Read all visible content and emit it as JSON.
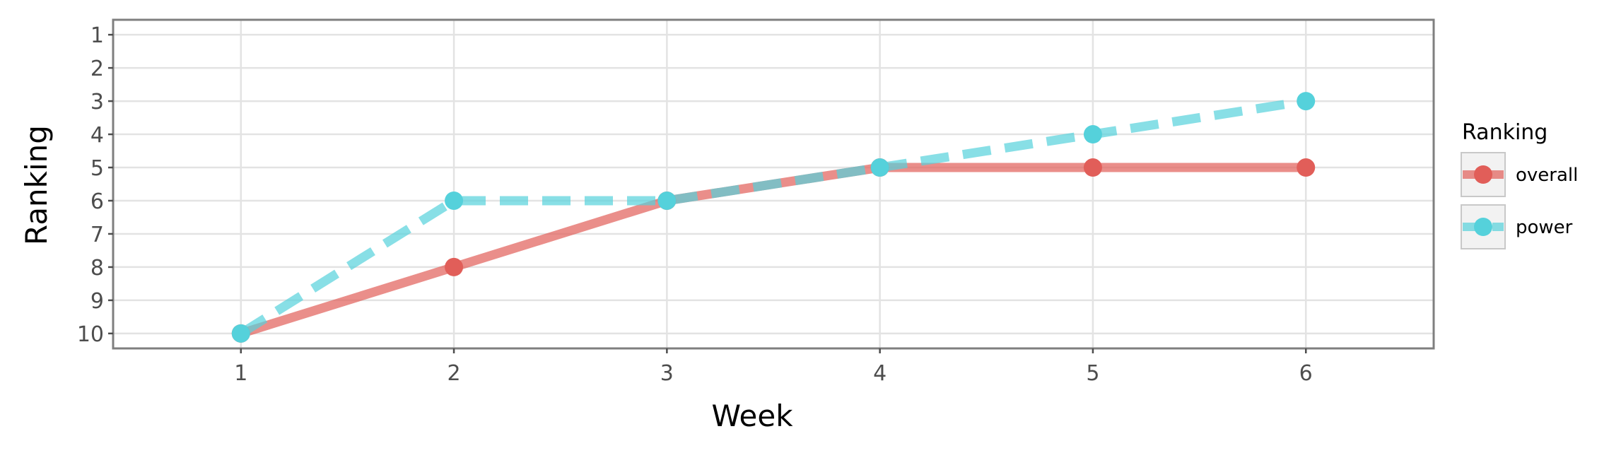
{
  "chart_data": {
    "type": "line",
    "xlabel": "Week",
    "ylabel": "Ranking",
    "x": [
      1,
      2,
      3,
      4,
      5,
      6
    ],
    "x_ticks": [
      "1",
      "2",
      "3",
      "4",
      "5",
      "6"
    ],
    "xlim": [
      0.4,
      6.6
    ],
    "y_ticks": [
      "1",
      "2",
      "3",
      "4",
      "5",
      "6",
      "7",
      "8",
      "9",
      "10"
    ],
    "ylim": [
      10.45,
      0.55
    ],
    "y_axis_reversed": true,
    "grid": true,
    "legend": {
      "title": "Ranking",
      "placement": "right"
    },
    "series": [
      {
        "name": "overall",
        "values": [
          10,
          8,
          6,
          5,
          5,
          5
        ],
        "color": "#E15E59",
        "line_style": "solid"
      },
      {
        "name": "power",
        "values": [
          10,
          6,
          6,
          5,
          4,
          3
        ],
        "color": "#55D1DB",
        "line_style": "dashed"
      }
    ]
  }
}
